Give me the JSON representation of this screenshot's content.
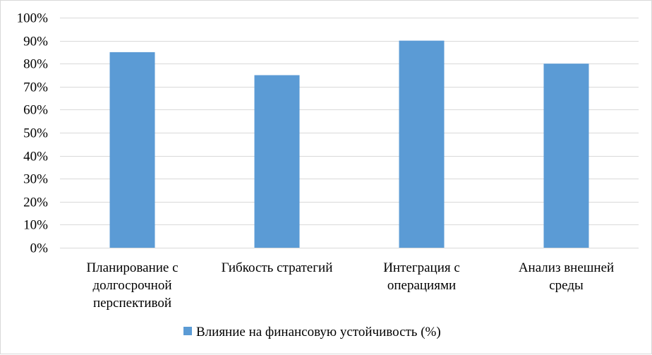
{
  "chart_data": {
    "type": "bar",
    "categories": [
      [
        "Планирование с",
        "долгосрочной",
        "перспективой"
      ],
      [
        "Гибкость стратегий"
      ],
      [
        "Интеграция с",
        "операциями"
      ],
      [
        "Анализ внешней",
        "среды"
      ]
    ],
    "series": [
      {
        "name": "Влияние на финансовую устойчивость (%)",
        "values": [
          85,
          75,
          90,
          80
        ],
        "color": "#5b9bd5"
      }
    ],
    "ylim": [
      0,
      100
    ],
    "yticks": [
      0,
      10,
      20,
      30,
      40,
      50,
      60,
      70,
      80,
      90,
      100
    ],
    "ytick_labels": [
      "0%",
      "10%",
      "20%",
      "30%",
      "40%",
      "50%",
      "60%",
      "70%",
      "80%",
      "90%",
      "100%"
    ],
    "title": "",
    "xlabel": "",
    "ylabel": "",
    "grid": true,
    "legend": "bottom",
    "gridline_color": "#d9d9d9"
  }
}
